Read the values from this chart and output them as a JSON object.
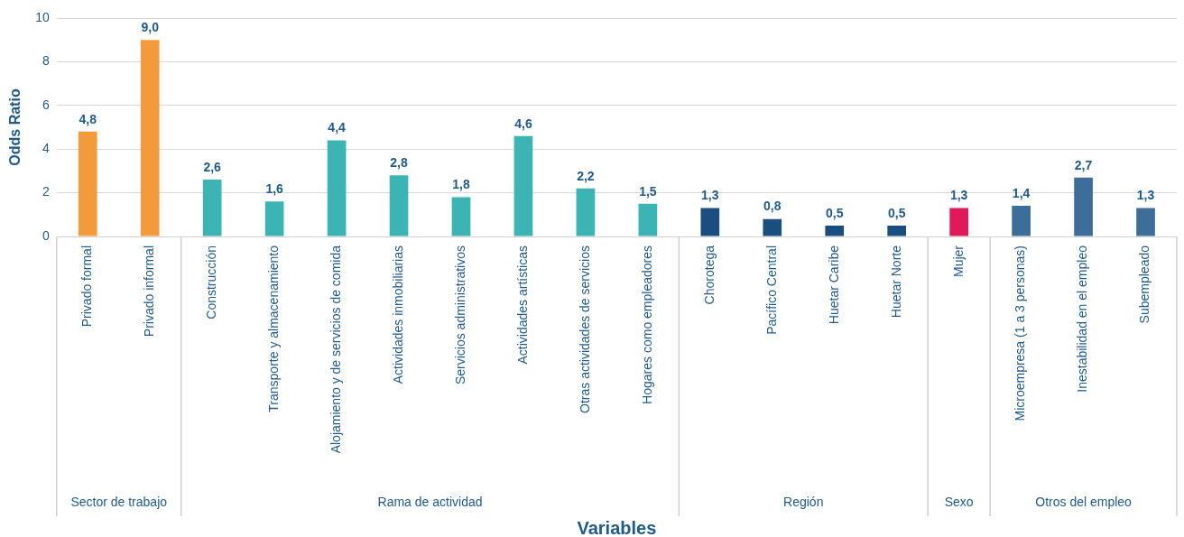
{
  "chart_data": {
    "type": "bar",
    "xlabel": "Variables",
    "ylabel": "Odds Ratio",
    "categories": [
      "Privado formal",
      "Privado informal",
      "Construcción",
      "Transporte y almacenamiento",
      "Alojamiento y de servicios de comida",
      "Actividades inmobiliarias",
      "Servicios administrativos",
      "Actividades artísticas",
      "Otras actividades de servicios",
      "Hogares como empleadores",
      "Chorotega",
      "Pacífico Central",
      "Huetar Caribe",
      "Huetar Norte",
      "Mujer",
      "Microempresa (1 a 3 personas)",
      "Inestabilidad en el empleo",
      "Subempleado"
    ],
    "values": [
      4.8,
      9.0,
      2.6,
      1.6,
      4.4,
      2.8,
      1.8,
      4.6,
      2.2,
      1.5,
      1.3,
      0.8,
      0.5,
      0.5,
      1.3,
      1.4,
      2.7,
      1.3
    ],
    "value_labels": [
      "4,8",
      "9,0",
      "2,6",
      "1,6",
      "4,4",
      "2,8",
      "1,8",
      "4,6",
      "2,2",
      "1,5",
      "1,3",
      "0,8",
      "0,5",
      "0,5",
      "1,3",
      "1,4",
      "2,7",
      "1,3"
    ],
    "colors": [
      "#f39a3c",
      "#f39a3c",
      "#3cb4b4",
      "#3cb4b4",
      "#3cb4b4",
      "#3cb4b4",
      "#3cb4b4",
      "#3cb4b4",
      "#3cb4b4",
      "#3cb4b4",
      "#1a4e7e",
      "#1a4e7e",
      "#1a4e7e",
      "#1a4e7e",
      "#e0195a",
      "#3d6e99",
      "#3d6e99",
      "#3d6e99"
    ],
    "annotations": [
      "Sector de trabajo",
      "Rama de actividad",
      "Región",
      "Sexo",
      "Otros del empleo"
    ],
    "ylim": [
      0,
      10
    ],
    "yticks": [
      0,
      2,
      4,
      6,
      8,
      10
    ],
    "grid": "y",
    "legend": false
  }
}
